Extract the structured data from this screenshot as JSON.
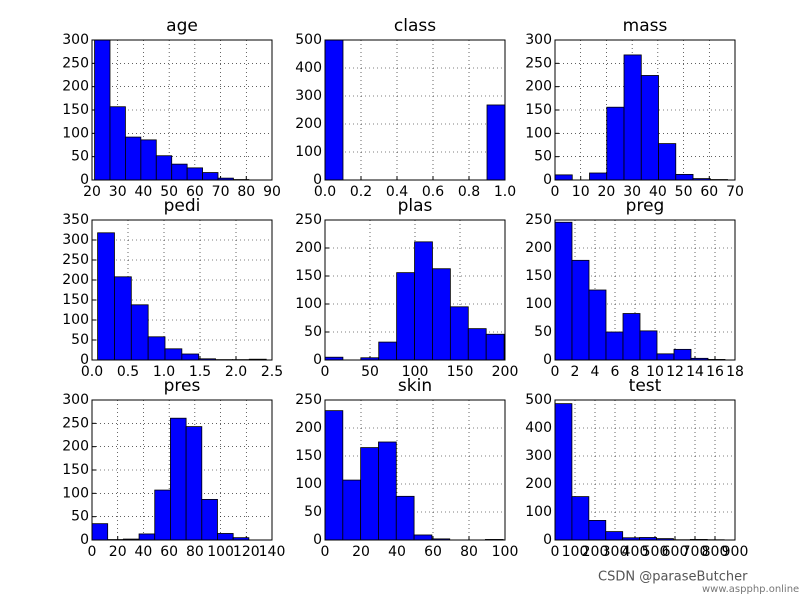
{
  "chart_data": [
    {
      "type": "histogram",
      "title": "age",
      "color": "#0000ff",
      "grid": true,
      "bins": [
        21,
        27,
        33,
        39,
        45,
        51,
        57,
        63,
        69,
        75,
        81
      ],
      "values": [
        300,
        157,
        92,
        86,
        52,
        34,
        26,
        16,
        4,
        1
      ],
      "xlim": [
        20,
        90
      ],
      "xticks": [
        20,
        30,
        40,
        50,
        60,
        70,
        80,
        90
      ],
      "ylim": [
        0,
        300
      ],
      "yticks": [
        0,
        50,
        100,
        150,
        200,
        250,
        300
      ]
    },
    {
      "type": "histogram",
      "title": "class",
      "color": "#0000ff",
      "grid": true,
      "bins": [
        0,
        0.1,
        0.2,
        0.3,
        0.4,
        0.5,
        0.6,
        0.7,
        0.8,
        0.9,
        1
      ],
      "values": [
        500,
        0,
        0,
        0,
        0,
        0,
        0,
        0,
        0,
        268
      ],
      "xlim": [
        0,
        1
      ],
      "xticks": [
        {
          "value": 0,
          "label": "0.0"
        },
        0.2,
        0.4,
        0.6,
        0.8,
        {
          "value": 1,
          "label": "1.0"
        }
      ],
      "ylim": [
        0,
        500
      ],
      "yticks": [
        0,
        100,
        200,
        300,
        400,
        500
      ]
    },
    {
      "type": "histogram",
      "title": "mass",
      "color": "#0000ff",
      "grid": true,
      "bins": [
        0,
        6.71,
        13.42,
        20.13,
        26.84,
        33.55,
        40.26,
        46.97,
        53.68,
        60.39,
        67.1
      ],
      "values": [
        11,
        0,
        15,
        156,
        268,
        224,
        78,
        12,
        3,
        1
      ],
      "xlim": [
        0,
        70
      ],
      "xticks": [
        0,
        10,
        20,
        30,
        40,
        50,
        60,
        70
      ],
      "ylim": [
        0,
        300
      ],
      "yticks": [
        0,
        50,
        100,
        150,
        200,
        250,
        300
      ]
    },
    {
      "type": "histogram",
      "title": "pedi",
      "color": "#0000ff",
      "grid": true,
      "bins": [
        0.078,
        0.312,
        0.546,
        0.78,
        1.014,
        1.248,
        1.482,
        1.716,
        1.95,
        2.184,
        2.42
      ],
      "values": [
        318,
        208,
        138,
        58,
        28,
        15,
        3,
        1,
        1,
        2
      ],
      "xlim": [
        0,
        2.5
      ],
      "xticks": [
        {
          "value": 0,
          "label": "0.0"
        },
        0.5,
        {
          "value": 1,
          "label": "1.0"
        },
        1.5,
        {
          "value": 2,
          "label": "2.0"
        },
        2.5
      ],
      "ylim": [
        0,
        350
      ],
      "yticks": [
        0,
        50,
        100,
        150,
        200,
        250,
        300,
        350
      ]
    },
    {
      "type": "histogram",
      "title": "plas",
      "color": "#0000ff",
      "grid": true,
      "bins": [
        0,
        19.9,
        39.8,
        59.7,
        79.6,
        99.5,
        119.4,
        139.3,
        159.2,
        179.1,
        199
      ],
      "values": [
        5,
        0,
        4,
        32,
        156,
        211,
        163,
        95,
        56,
        46
      ],
      "xlim": [
        0,
        200
      ],
      "xticks": [
        0,
        50,
        100,
        150,
        200
      ],
      "ylim": [
        0,
        250
      ],
      "yticks": [
        0,
        50,
        100,
        150,
        200,
        250
      ]
    },
    {
      "type": "histogram",
      "title": "preg",
      "color": "#0000ff",
      "grid": true,
      "bins": [
        0,
        1.7,
        3.4,
        5.1,
        6.8,
        8.5,
        10.2,
        11.9,
        13.6,
        15.3,
        17
      ],
      "values": [
        246,
        178,
        125,
        50,
        83,
        52,
        11,
        19,
        3,
        1
      ],
      "xlim": [
        0,
        18
      ],
      "xticks": [
        0,
        2,
        4,
        6,
        8,
        10,
        12,
        14,
        16,
        18
      ],
      "ylim": [
        0,
        250
      ],
      "yticks": [
        0,
        50,
        100,
        150,
        200,
        250
      ]
    },
    {
      "type": "histogram",
      "title": "pres",
      "color": "#0000ff",
      "grid": true,
      "bins": [
        0,
        12.2,
        24.4,
        36.6,
        48.8,
        61,
        73.2,
        85.4,
        97.6,
        109.8,
        122
      ],
      "values": [
        35,
        1,
        2,
        13,
        107,
        261,
        243,
        87,
        14,
        5
      ],
      "xlim": [
        0,
        140
      ],
      "xticks": [
        0,
        20,
        40,
        60,
        80,
        100,
        120,
        140
      ],
      "ylim": [
        0,
        300
      ],
      "yticks": [
        0,
        50,
        100,
        150,
        200,
        250,
        300
      ]
    },
    {
      "type": "histogram",
      "title": "skin",
      "color": "#0000ff",
      "grid": true,
      "bins": [
        0,
        9.9,
        19.8,
        29.7,
        39.6,
        49.5,
        59.4,
        69.3,
        79.2,
        89.1,
        99
      ],
      "values": [
        231,
        107,
        165,
        175,
        78,
        9,
        2,
        0,
        0,
        1
      ],
      "xlim": [
        0,
        100
      ],
      "xticks": [
        0,
        20,
        40,
        60,
        80,
        100
      ],
      "ylim": [
        0,
        250
      ],
      "yticks": [
        0,
        50,
        100,
        150,
        200,
        250
      ]
    },
    {
      "type": "histogram",
      "title": "test",
      "color": "#0000ff",
      "grid": true,
      "bins": [
        0,
        84.6,
        169.2,
        253.8,
        338.4,
        423,
        507.6,
        592.2,
        676.8,
        761.4,
        846
      ],
      "values": [
        487,
        155,
        70,
        30,
        8,
        9,
        5,
        1,
        2,
        1
      ],
      "xlim": [
        0,
        900
      ],
      "xticks": [
        0,
        100,
        200,
        300,
        400,
        500,
        600,
        700,
        800,
        900
      ],
      "ylim": [
        0,
        500
      ],
      "yticks": [
        0,
        100,
        200,
        300,
        400,
        500
      ]
    }
  ],
  "watermark": {
    "author": "CSDN @paraseButcher",
    "site": "www.aspphp.online"
  }
}
